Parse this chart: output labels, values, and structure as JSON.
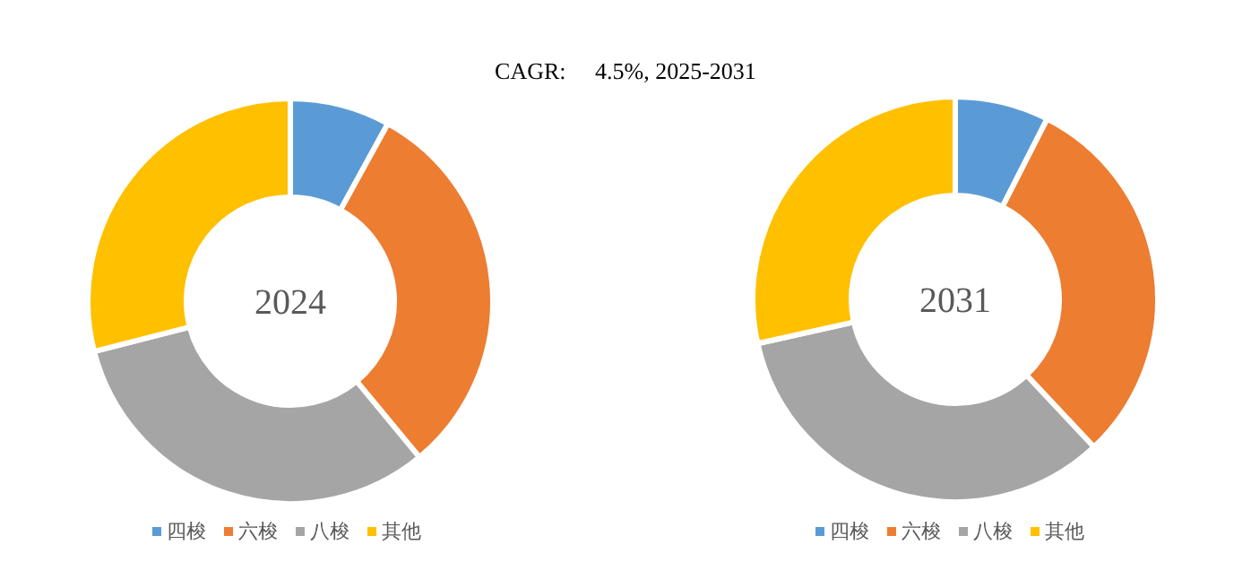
{
  "chart_data": [
    {
      "type": "donut",
      "title": "CAGR:     4.5%, 2025-2031",
      "annotations": [
        "2024"
      ],
      "categories": [
        "四梭",
        "六梭",
        "八梭",
        "其他"
      ],
      "values": [
        8,
        31,
        32,
        29
      ],
      "colors": [
        "#5b9bd5",
        "#ed7d31",
        "#a5a5a5",
        "#ffc000"
      ],
      "legend": "bottom"
    },
    {
      "type": "donut",
      "annotations": [
        "2031"
      ],
      "categories": [
        "四梭",
        "六梭",
        "八梭",
        "其他"
      ],
      "values": [
        7.5,
        30.5,
        33.5,
        28.5
      ],
      "colors": [
        "#5b9bd5",
        "#ed7d31",
        "#a5a5a5",
        "#ffc000"
      ],
      "legend": "bottom"
    }
  ]
}
